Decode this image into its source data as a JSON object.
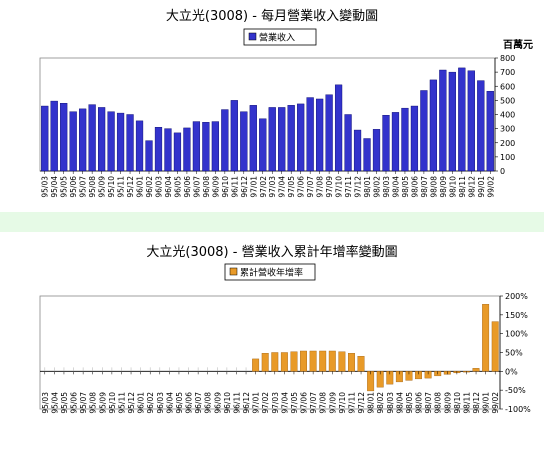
{
  "chart_data": [
    {
      "type": "bar",
      "title": "大立光(3008) - 每月營業收入變動圖",
      "ylabel": "百萬元",
      "legend": "營業收入",
      "legend_position": "top-center",
      "color": "#3333cc",
      "ylim": [
        0,
        800
      ],
      "yticks": [
        "0",
        "100",
        "200",
        "300",
        "400",
        "500",
        "600",
        "700",
        "800"
      ],
      "categories": [
        "95/03",
        "95/04",
        "95/05",
        "95/06",
        "95/07",
        "95/08",
        "95/09",
        "95/10",
        "95/11",
        "95/12",
        "96/01",
        "96/02",
        "96/03",
        "96/04",
        "96/05",
        "96/06",
        "96/07",
        "96/08",
        "96/09",
        "96/10",
        "96/11",
        "96/12",
        "97/01",
        "97/02",
        "97/03",
        "97/04",
        "97/05",
        "97/06",
        "97/07",
        "97/08",
        "97/09",
        "97/10",
        "97/11",
        "97/12",
        "98/01",
        "98/02",
        "98/03",
        "98/04",
        "98/05",
        "98/06",
        "98/07",
        "98/08",
        "98/09",
        "98/10",
        "98/11",
        "98/12",
        "99/01",
        "99/02"
      ],
      "values": [
        460,
        495,
        480,
        420,
        440,
        470,
        450,
        420,
        410,
        400,
        355,
        215,
        310,
        300,
        270,
        305,
        350,
        345,
        350,
        435,
        500,
        420,
        465,
        370,
        450,
        450,
        465,
        475,
        520,
        510,
        540,
        610,
        400,
        290,
        230,
        295,
        395,
        415,
        445,
        460,
        570,
        645,
        715,
        700,
        730,
        710,
        640,
        565
      ]
    },
    {
      "type": "bar",
      "title": "大立光(3008) -  營業收入累計年增率變動圖",
      "legend": "累計營收年增率",
      "legend_position": "top-center",
      "color": "#e89a28",
      "ylim": [
        -100,
        200
      ],
      "yticks": [
        "-100%",
        "-50%",
        "0%",
        "50%",
        "100%",
        "150%",
        "200%"
      ],
      "categories": [
        "95/03",
        "95/04",
        "95/05",
        "95/06",
        "95/07",
        "95/08",
        "95/09",
        "95/10",
        "95/11",
        "95/12",
        "96/01",
        "96/02",
        "96/03",
        "96/04",
        "96/05",
        "96/06",
        "96/07",
        "96/08",
        "96/09",
        "96/10",
        "96/11",
        "96/12",
        "97/01",
        "97/02",
        "97/03",
        "97/04",
        "97/05",
        "97/06",
        "97/07",
        "97/08",
        "97/09",
        "97/10",
        "97/11",
        "97/12",
        "98/01",
        "98/02",
        "98/03",
        "98/04",
        "98/05",
        "98/06",
        "98/07",
        "98/08",
        "98/09",
        "98/10",
        "98/11",
        "98/12",
        "99/01",
        "99/02"
      ],
      "values": [
        0,
        0,
        0,
        0,
        0,
        0,
        0,
        0,
        0,
        0,
        0,
        0,
        0,
        0,
        0,
        0,
        0,
        0,
        0,
        0,
        0,
        0,
        33,
        48,
        50,
        50,
        52,
        54,
        54,
        54,
        54,
        52,
        48,
        40,
        -52,
        -42,
        -34,
        -28,
        -24,
        -20,
        -18,
        -12,
        -8,
        -4,
        -2,
        8,
        178,
        132
      ]
    }
  ]
}
